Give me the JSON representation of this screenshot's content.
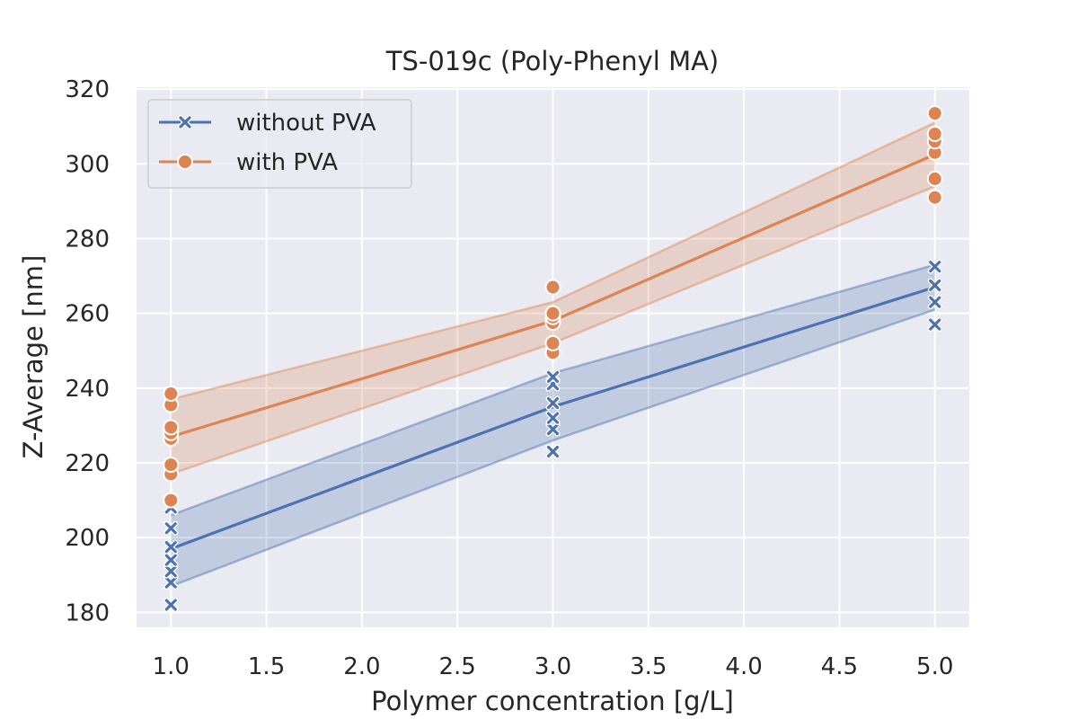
{
  "chart_data": {
    "type": "line",
    "title": "TS-019c (Poly-Phenyl MA)",
    "xlabel": "Polymer concentration [g/L]",
    "ylabel": "Z-Average [nm]",
    "xlim": [
      0.82,
      5.18
    ],
    "ylim": [
      176,
      320.5
    ],
    "xticks": [
      1.0,
      1.5,
      2.0,
      2.5,
      3.0,
      3.5,
      4.0,
      4.5,
      5.0
    ],
    "xtick_labels": [
      "1.0",
      "1.5",
      "2.0",
      "2.5",
      "3.0",
      "3.5",
      "4.0",
      "4.5",
      "5.0"
    ],
    "yticks": [
      180,
      200,
      220,
      240,
      260,
      280,
      300,
      320
    ],
    "ytick_labels": [
      "180",
      "200",
      "220",
      "240",
      "260",
      "280",
      "300",
      "320"
    ],
    "grid": true,
    "legend_position": "top-left",
    "series": [
      {
        "name": "without PVA",
        "color": "#4c72b0",
        "marker": "x",
        "mean_line": {
          "x": [
            1.0,
            3.0,
            5.0
          ],
          "y": [
            197,
            235,
            267
          ]
        },
        "ci_lower": [
          187,
          226,
          261
        ],
        "ci_upper": [
          206,
          244,
          273
        ],
        "points": [
          {
            "x": 1.0,
            "y": 182
          },
          {
            "x": 1.0,
            "y": 188
          },
          {
            "x": 1.0,
            "y": 191
          },
          {
            "x": 1.0,
            "y": 194
          },
          {
            "x": 1.0,
            "y": 197.5
          },
          {
            "x": 1.0,
            "y": 202.5
          },
          {
            "x": 1.0,
            "y": 208
          },
          {
            "x": 3.0,
            "y": 223
          },
          {
            "x": 3.0,
            "y": 229
          },
          {
            "x": 3.0,
            "y": 232
          },
          {
            "x": 3.0,
            "y": 236
          },
          {
            "x": 3.0,
            "y": 241
          },
          {
            "x": 3.0,
            "y": 243
          },
          {
            "x": 5.0,
            "y": 257
          },
          {
            "x": 5.0,
            "y": 263
          },
          {
            "x": 5.0,
            "y": 267.5
          },
          {
            "x": 5.0,
            "y": 272.5
          }
        ]
      },
      {
        "name": "with PVA",
        "color": "#dd8452",
        "marker": "o",
        "mean_line": {
          "x": [
            1.0,
            3.0,
            5.0
          ],
          "y": [
            227,
            258,
            302.5
          ]
        },
        "ci_lower": [
          217,
          252,
          294
        ],
        "ci_upper": [
          237,
          263,
          311
        ],
        "points": [
          {
            "x": 1.0,
            "y": 210
          },
          {
            "x": 1.0,
            "y": 217
          },
          {
            "x": 1.0,
            "y": 219.5
          },
          {
            "x": 1.0,
            "y": 226.5
          },
          {
            "x": 1.0,
            "y": 228
          },
          {
            "x": 1.0,
            "y": 229.5
          },
          {
            "x": 1.0,
            "y": 235.5
          },
          {
            "x": 1.0,
            "y": 238.5
          },
          {
            "x": 3.0,
            "y": 249.5
          },
          {
            "x": 3.0,
            "y": 252
          },
          {
            "x": 3.0,
            "y": 257.5
          },
          {
            "x": 3.0,
            "y": 259
          },
          {
            "x": 3.0,
            "y": 260
          },
          {
            "x": 3.0,
            "y": 267
          },
          {
            "x": 5.0,
            "y": 291
          },
          {
            "x": 5.0,
            "y": 296
          },
          {
            "x": 5.0,
            "y": 303
          },
          {
            "x": 5.0,
            "y": 306
          },
          {
            "x": 5.0,
            "y": 308
          },
          {
            "x": 5.0,
            "y": 313.5
          }
        ]
      }
    ]
  }
}
